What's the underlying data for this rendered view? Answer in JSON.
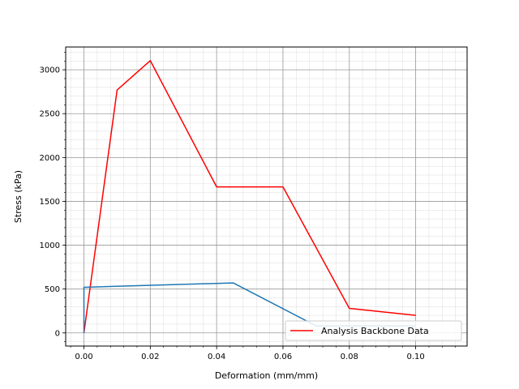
{
  "chart_data": {
    "type": "line",
    "title": "",
    "xlabel": "Deformation (mm/mm)",
    "ylabel": "Stress (kPa)",
    "xlim": [
      -0.0055,
      0.1155
    ],
    "ylim": [
      -150,
      3260
    ],
    "grid": {
      "major": true,
      "minor": true
    },
    "legend": {
      "placement": "lower-right",
      "entries": [
        "Analysis Backbone Data"
      ]
    },
    "x_ticks": [
      0.0,
      0.02,
      0.04,
      0.06,
      0.08,
      0.1
    ],
    "x_tick_labels": [
      "0.00",
      "0.02",
      "0.04",
      "0.06",
      "0.08",
      "0.10"
    ],
    "y_ticks": [
      0,
      500,
      1000,
      1500,
      2000,
      2500,
      3000
    ],
    "y_tick_labels": [
      "0",
      "500",
      "1000",
      "1500",
      "2000",
      "2500",
      "3000"
    ],
    "series": [
      {
        "name": "Analysis Backbone Data",
        "color": "#ff0000",
        "x": [
          0.0,
          0.01,
          0.02,
          0.04,
          0.06,
          0.08,
          0.1
        ],
        "y": [
          0,
          2770,
          3105,
          1665,
          1665,
          280,
          200
        ]
      },
      {
        "color": "#1f77b4",
        "x": [
          0.0,
          0.0,
          0.045,
          0.07,
          0.1
        ],
        "y": [
          0,
          520,
          570,
          80,
          80
        ]
      }
    ]
  }
}
